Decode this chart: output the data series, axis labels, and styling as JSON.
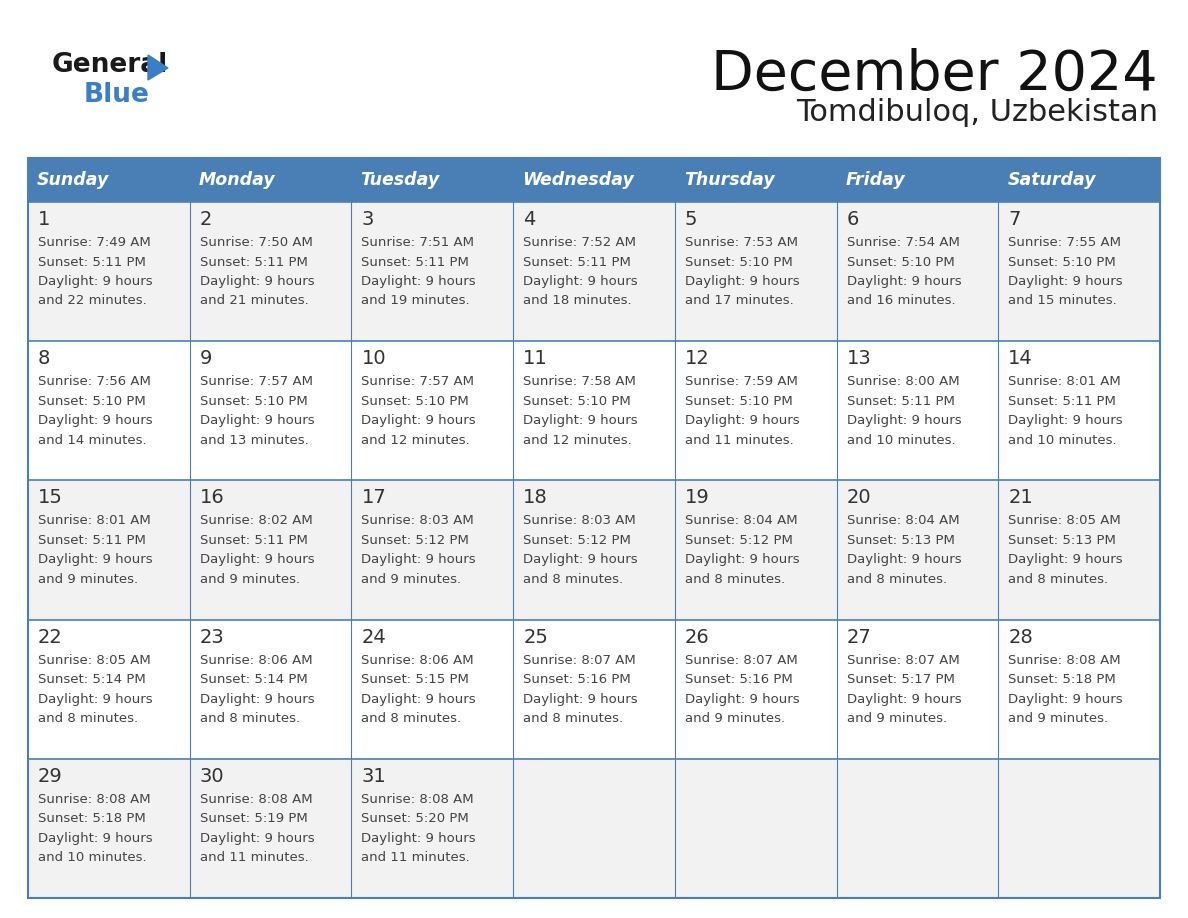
{
  "title": "December 2024",
  "subtitle": "Tomdibuloq, Uzbekistan",
  "header_color": "#4A7FB5",
  "header_text_color": "#FFFFFF",
  "border_color": "#4A7FB5",
  "day_number_color": "#333333",
  "cell_text_color": "#444444",
  "row_bg_even": "#F2F2F2",
  "row_bg_odd": "#FFFFFF",
  "days_of_week": [
    "Sunday",
    "Monday",
    "Tuesday",
    "Wednesday",
    "Thursday",
    "Friday",
    "Saturday"
  ],
  "weeks": [
    [
      {
        "day": 1,
        "sunrise": "7:49 AM",
        "sunset": "5:11 PM",
        "daylight_h": "9 hours",
        "daylight_m": "and 22 minutes."
      },
      {
        "day": 2,
        "sunrise": "7:50 AM",
        "sunset": "5:11 PM",
        "daylight_h": "9 hours",
        "daylight_m": "and 21 minutes."
      },
      {
        "day": 3,
        "sunrise": "7:51 AM",
        "sunset": "5:11 PM",
        "daylight_h": "9 hours",
        "daylight_m": "and 19 minutes."
      },
      {
        "day": 4,
        "sunrise": "7:52 AM",
        "sunset": "5:11 PM",
        "daylight_h": "9 hours",
        "daylight_m": "and 18 minutes."
      },
      {
        "day": 5,
        "sunrise": "7:53 AM",
        "sunset": "5:10 PM",
        "daylight_h": "9 hours",
        "daylight_m": "and 17 minutes."
      },
      {
        "day": 6,
        "sunrise": "7:54 AM",
        "sunset": "5:10 PM",
        "daylight_h": "9 hours",
        "daylight_m": "and 16 minutes."
      },
      {
        "day": 7,
        "sunrise": "7:55 AM",
        "sunset": "5:10 PM",
        "daylight_h": "9 hours",
        "daylight_m": "and 15 minutes."
      }
    ],
    [
      {
        "day": 8,
        "sunrise": "7:56 AM",
        "sunset": "5:10 PM",
        "daylight_h": "9 hours",
        "daylight_m": "and 14 minutes."
      },
      {
        "day": 9,
        "sunrise": "7:57 AM",
        "sunset": "5:10 PM",
        "daylight_h": "9 hours",
        "daylight_m": "and 13 minutes."
      },
      {
        "day": 10,
        "sunrise": "7:57 AM",
        "sunset": "5:10 PM",
        "daylight_h": "9 hours",
        "daylight_m": "and 12 minutes."
      },
      {
        "day": 11,
        "sunrise": "7:58 AM",
        "sunset": "5:10 PM",
        "daylight_h": "9 hours",
        "daylight_m": "and 12 minutes."
      },
      {
        "day": 12,
        "sunrise": "7:59 AM",
        "sunset": "5:10 PM",
        "daylight_h": "9 hours",
        "daylight_m": "and 11 minutes."
      },
      {
        "day": 13,
        "sunrise": "8:00 AM",
        "sunset": "5:11 PM",
        "daylight_h": "9 hours",
        "daylight_m": "and 10 minutes."
      },
      {
        "day": 14,
        "sunrise": "8:01 AM",
        "sunset": "5:11 PM",
        "daylight_h": "9 hours",
        "daylight_m": "and 10 minutes."
      }
    ],
    [
      {
        "day": 15,
        "sunrise": "8:01 AM",
        "sunset": "5:11 PM",
        "daylight_h": "9 hours",
        "daylight_m": "and 9 minutes."
      },
      {
        "day": 16,
        "sunrise": "8:02 AM",
        "sunset": "5:11 PM",
        "daylight_h": "9 hours",
        "daylight_m": "and 9 minutes."
      },
      {
        "day": 17,
        "sunrise": "8:03 AM",
        "sunset": "5:12 PM",
        "daylight_h": "9 hours",
        "daylight_m": "and 9 minutes."
      },
      {
        "day": 18,
        "sunrise": "8:03 AM",
        "sunset": "5:12 PM",
        "daylight_h": "9 hours",
        "daylight_m": "and 8 minutes."
      },
      {
        "day": 19,
        "sunrise": "8:04 AM",
        "sunset": "5:12 PM",
        "daylight_h": "9 hours",
        "daylight_m": "and 8 minutes."
      },
      {
        "day": 20,
        "sunrise": "8:04 AM",
        "sunset": "5:13 PM",
        "daylight_h": "9 hours",
        "daylight_m": "and 8 minutes."
      },
      {
        "day": 21,
        "sunrise": "8:05 AM",
        "sunset": "5:13 PM",
        "daylight_h": "9 hours",
        "daylight_m": "and 8 minutes."
      }
    ],
    [
      {
        "day": 22,
        "sunrise": "8:05 AM",
        "sunset": "5:14 PM",
        "daylight_h": "9 hours",
        "daylight_m": "and 8 minutes."
      },
      {
        "day": 23,
        "sunrise": "8:06 AM",
        "sunset": "5:14 PM",
        "daylight_h": "9 hours",
        "daylight_m": "and 8 minutes."
      },
      {
        "day": 24,
        "sunrise": "8:06 AM",
        "sunset": "5:15 PM",
        "daylight_h": "9 hours",
        "daylight_m": "and 8 minutes."
      },
      {
        "day": 25,
        "sunrise": "8:07 AM",
        "sunset": "5:16 PM",
        "daylight_h": "9 hours",
        "daylight_m": "and 8 minutes."
      },
      {
        "day": 26,
        "sunrise": "8:07 AM",
        "sunset": "5:16 PM",
        "daylight_h": "9 hours",
        "daylight_m": "and 9 minutes."
      },
      {
        "day": 27,
        "sunrise": "8:07 AM",
        "sunset": "5:17 PM",
        "daylight_h": "9 hours",
        "daylight_m": "and 9 minutes."
      },
      {
        "day": 28,
        "sunrise": "8:08 AM",
        "sunset": "5:18 PM",
        "daylight_h": "9 hours",
        "daylight_m": "and 9 minutes."
      }
    ],
    [
      {
        "day": 29,
        "sunrise": "8:08 AM",
        "sunset": "5:18 PM",
        "daylight_h": "9 hours",
        "daylight_m": "and 10 minutes."
      },
      {
        "day": 30,
        "sunrise": "8:08 AM",
        "sunset": "5:19 PM",
        "daylight_h": "9 hours",
        "daylight_m": "and 11 minutes."
      },
      {
        "day": 31,
        "sunrise": "8:08 AM",
        "sunset": "5:20 PM",
        "daylight_h": "9 hours",
        "daylight_m": "and 11 minutes."
      },
      null,
      null,
      null,
      null
    ]
  ],
  "logo_color_general": "#1a1a1a",
  "logo_color_blue": "#3A7EC6",
  "logo_triangle_color": "#3A7EC6"
}
